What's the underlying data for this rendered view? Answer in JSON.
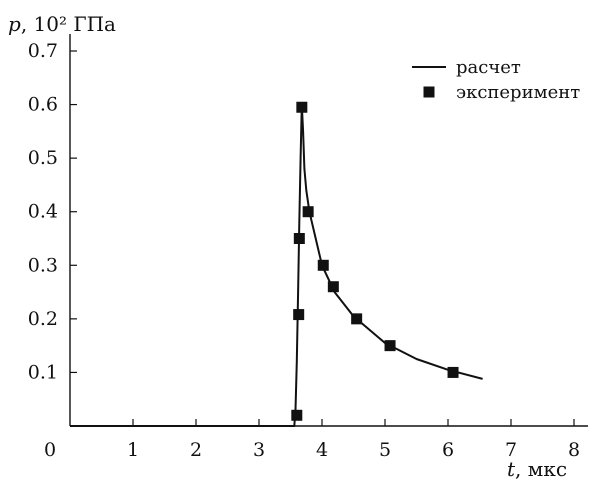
{
  "chart_data": {
    "type": "line",
    "title": "",
    "ylabel": "p, 10² ГПа",
    "xlabel": "t, мкс",
    "xlim": [
      0,
      8
    ],
    "ylim": [
      0,
      0.7
    ],
    "grid": false,
    "legend_position": "top-right",
    "x_ticks": [
      "0",
      "1",
      "2",
      "3",
      "4",
      "5",
      "6",
      "7",
      "8"
    ],
    "y_ticks": [
      "0.1",
      "0.2",
      "0.3",
      "0.4",
      "0.5",
      "0.6",
      "0.7"
    ],
    "series": [
      {
        "name": "расчет",
        "kind": "line",
        "x": [
          0,
          3.5,
          3.56,
          3.58,
          3.6,
          3.62,
          3.64,
          3.66,
          3.68,
          3.7,
          3.72,
          3.75,
          3.8,
          3.9,
          4.0,
          4.2,
          4.5,
          5.0,
          5.5,
          6.0,
          6.55
        ],
        "y": [
          0,
          0,
          0.0,
          0.03,
          0.12,
          0.25,
          0.38,
          0.5,
          0.6,
          0.55,
          0.48,
          0.44,
          0.4,
          0.35,
          0.3,
          0.25,
          0.205,
          0.155,
          0.125,
          0.105,
          0.088
        ]
      },
      {
        "name": "эксперимент",
        "kind": "scatter",
        "x": [
          3.6,
          3.63,
          3.64,
          3.68,
          3.78,
          4.02,
          4.18,
          4.55,
          5.08,
          6.08
        ],
        "y": [
          0.02,
          0.208,
          0.35,
          0.595,
          0.4,
          0.3,
          0.26,
          0.2,
          0.15,
          0.1
        ]
      }
    ]
  }
}
